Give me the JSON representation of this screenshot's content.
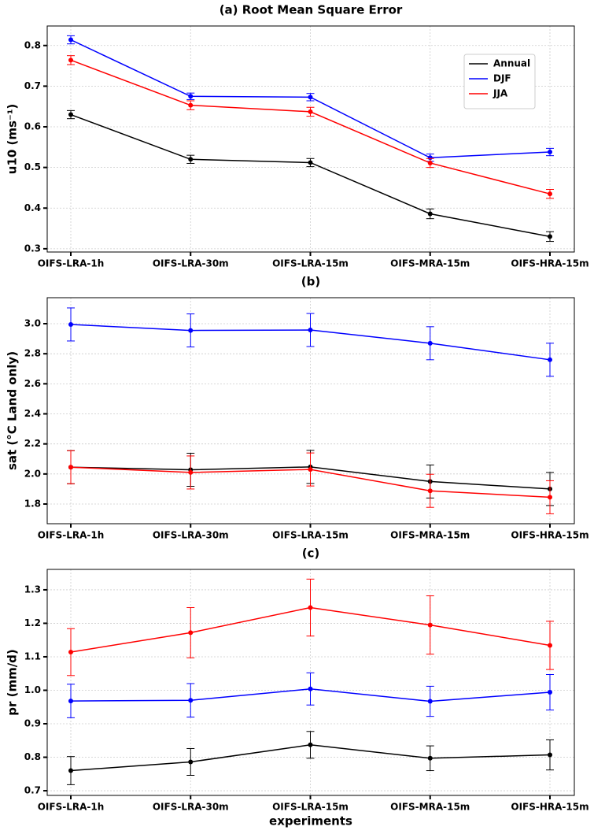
{
  "chart_data": [
    {
      "type": "line",
      "title": "(a) Root Mean Square Error",
      "y_label": "u10 (ms⁻¹)",
      "categories": [
        "OIFS-LRA-1h",
        "OIFS-LRA-30m",
        "OIFS-LRA-15m",
        "OIFS-MRA-15m",
        "OIFS-HRA-15m"
      ],
      "ylim": [
        0.292,
        0.848
      ],
      "yticks": [
        0.3,
        0.4,
        0.5,
        0.6,
        0.7,
        0.8
      ],
      "grid": true,
      "legend": "upper right",
      "series": [
        {
          "name": "Annual",
          "color": "#000000",
          "values": [
            0.63,
            0.52,
            0.512,
            0.386,
            0.33
          ],
          "errors": [
            0.01,
            0.01,
            0.01,
            0.012,
            0.012
          ]
        },
        {
          "name": "DJF",
          "color": "#0000ff",
          "values": [
            0.814,
            0.675,
            0.673,
            0.524,
            0.538
          ],
          "errors": [
            0.01,
            0.008,
            0.009,
            0.009,
            0.009
          ]
        },
        {
          "name": "JJA",
          "color": "#ff0000",
          "values": [
            0.764,
            0.653,
            0.637,
            0.511,
            0.435
          ],
          "errors": [
            0.011,
            0.011,
            0.011,
            0.011,
            0.011
          ]
        }
      ]
    },
    {
      "type": "line",
      "title": "(b)",
      "y_label": "sat (°C Land only)",
      "categories": [
        "OIFS-LRA-1h",
        "OIFS-LRA-30m",
        "OIFS-LRA-15m",
        "OIFS-MRA-15m",
        "OIFS-HRA-15m"
      ],
      "ylim": [
        1.669,
        3.173
      ],
      "yticks": [
        1.8,
        {
          "value": 2,
          "label": "2.0"
        },
        2.2,
        2.4,
        2.6,
        2.8,
        {
          "value": 3,
          "label": "3.0"
        }
      ],
      "grid": true,
      "series": [
        {
          "name": "Annual",
          "color": "#000000",
          "values": [
            2.045,
            2.028,
            2.047,
            1.95,
            1.9
          ],
          "errors": [
            0.11,
            0.11,
            0.11,
            0.11,
            0.11
          ]
        },
        {
          "name": "DJF",
          "color": "#0000ff",
          "values": [
            2.995,
            2.955,
            2.958,
            2.87,
            2.76
          ],
          "errors": [
            0.11,
            0.11,
            0.11,
            0.11,
            0.11
          ]
        },
        {
          "name": "JJA",
          "color": "#ff0000",
          "values": [
            2.045,
            2.01,
            2.03,
            1.888,
            1.845
          ],
          "errors": [
            0.11,
            0.11,
            0.11,
            0.11,
            0.11
          ]
        }
      ]
    },
    {
      "type": "line",
      "title": "(c)",
      "y_label": "pr (mm/d)",
      "x_label": "experiments",
      "categories": [
        "OIFS-LRA-1h",
        "OIFS-LRA-30m",
        "OIFS-LRA-15m",
        "OIFS-MRA-15m",
        "OIFS-HRA-15m"
      ],
      "ylim": [
        0.686,
        1.361
      ],
      "yticks": [
        0.7,
        0.8,
        0.9,
        {
          "value": 1,
          "label": "1.0"
        },
        1.1,
        1.2,
        1.3
      ],
      "grid": true,
      "series": [
        {
          "name": "Annual",
          "color": "#000000",
          "values": [
            0.76,
            0.786,
            0.837,
            0.797,
            0.807
          ],
          "errors": [
            0.042,
            0.04,
            0.04,
            0.037,
            0.045
          ]
        },
        {
          "name": "DJF",
          "color": "#0000ff",
          "values": [
            0.968,
            0.97,
            1.004,
            0.967,
            0.994
          ],
          "errors": [
            0.05,
            0.05,
            0.048,
            0.045,
            0.053
          ]
        },
        {
          "name": "JJA",
          "color": "#ff0000",
          "values": [
            1.114,
            1.172,
            1.247,
            1.195,
            1.134
          ],
          "errors": [
            0.07,
            0.075,
            0.085,
            0.087,
            0.072
          ]
        }
      ]
    }
  ]
}
